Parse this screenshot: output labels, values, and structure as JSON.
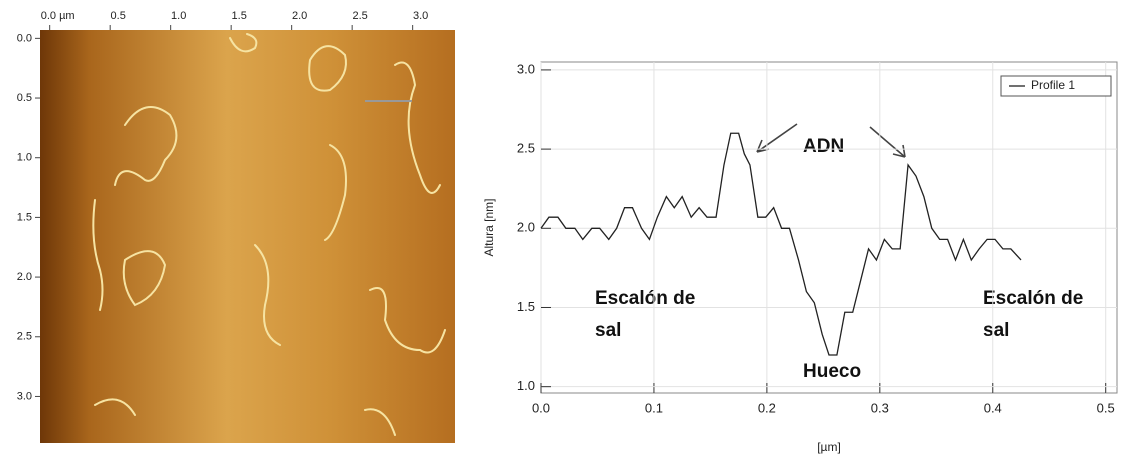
{
  "chart_data": [
    {
      "type": "image",
      "xticks": [
        {
          "value": 0,
          "label": "0.0 µm"
        },
        0.5,
        {
          "value": 1,
          "label": "1.0"
        },
        1.5,
        {
          "value": 2,
          "label": "2.0"
        },
        2.5,
        {
          "value": 3,
          "label": "3.0"
        }
      ],
      "yticks": [
        {
          "value": 0,
          "label": "0.0"
        },
        0.5,
        {
          "value": 1,
          "label": "1.0"
        },
        1.5,
        {
          "value": 2,
          "label": "2.0"
        },
        2.5,
        {
          "value": 3,
          "label": "3.0"
        }
      ],
      "xlim": [
        -0.08,
        3.35
      ],
      "ylim": [
        -0.07,
        3.39
      ]
    },
    {
      "type": "line",
      "x_label": "[µm]",
      "y_label": "Altura [nm]",
      "xlim": [
        0,
        0.51
      ],
      "ylim": [
        0.96,
        3.05
      ],
      "xticks": [
        {
          "value": 0,
          "label": "0.0"
        },
        0.1,
        0.2,
        0.3,
        0.4,
        0.5
      ],
      "yticks": [
        {
          "value": 1,
          "label": "1.0"
        },
        1.5,
        {
          "value": 2,
          "label": "2.0"
        },
        2.5,
        {
          "value": 3,
          "label": "3.0"
        }
      ],
      "grid": true,
      "legend": "upper right",
      "x": [
        0,
        0.007,
        0.015,
        0.022,
        0.03,
        0.037,
        0.045,
        0.052,
        0.06,
        0.067,
        0.074,
        0.081,
        0.089,
        0.096,
        0.103,
        0.111,
        0.118,
        0.125,
        0.133,
        0.14,
        0.147,
        0.155,
        0.162,
        0.168,
        0.175,
        0.18,
        0.185,
        0.192,
        0.199,
        0.206,
        0.213,
        0.22,
        0.228,
        0.235,
        0.242,
        0.249,
        0.255,
        0.262,
        0.269,
        0.276,
        0.283,
        0.29,
        0.297,
        0.304,
        0.311,
        0.318,
        0.325,
        0.332,
        0.339,
        0.346,
        0.353,
        0.36,
        0.367,
        0.374,
        0.381,
        0.388,
        0.395,
        0.402,
        0.409,
        0.416,
        0.425
      ],
      "series": [
        {
          "name": "Profile 1",
          "color": "#222222",
          "values": [
            2.0,
            2.07,
            2.07,
            2.0,
            2.0,
            1.93,
            2.0,
            2.0,
            1.93,
            2.0,
            2.13,
            2.13,
            2.0,
            1.93,
            2.07,
            2.2,
            2.13,
            2.2,
            2.07,
            2.13,
            2.07,
            2.07,
            2.4,
            2.6,
            2.6,
            2.47,
            2.4,
            2.07,
            2.07,
            2.13,
            2.0,
            2.0,
            1.8,
            1.6,
            1.53,
            1.33,
            1.2,
            1.2,
            1.47,
            1.47,
            1.67,
            1.87,
            1.8,
            1.93,
            1.87,
            1.87,
            2.4,
            2.33,
            2.2,
            2.0,
            1.93,
            1.93,
            1.8,
            1.93,
            1.8,
            1.87,
            1.93,
            1.93,
            1.87,
            1.87,
            1.8
          ]
        }
      ],
      "annotations": [
        {
          "text": "ADN"
        },
        {
          "lines": [
            "Escalón de",
            "sal"
          ]
        },
        {
          "text": "Hueco"
        },
        {
          "lines": [
            "Escalón de",
            "sal"
          ]
        }
      ]
    }
  ]
}
